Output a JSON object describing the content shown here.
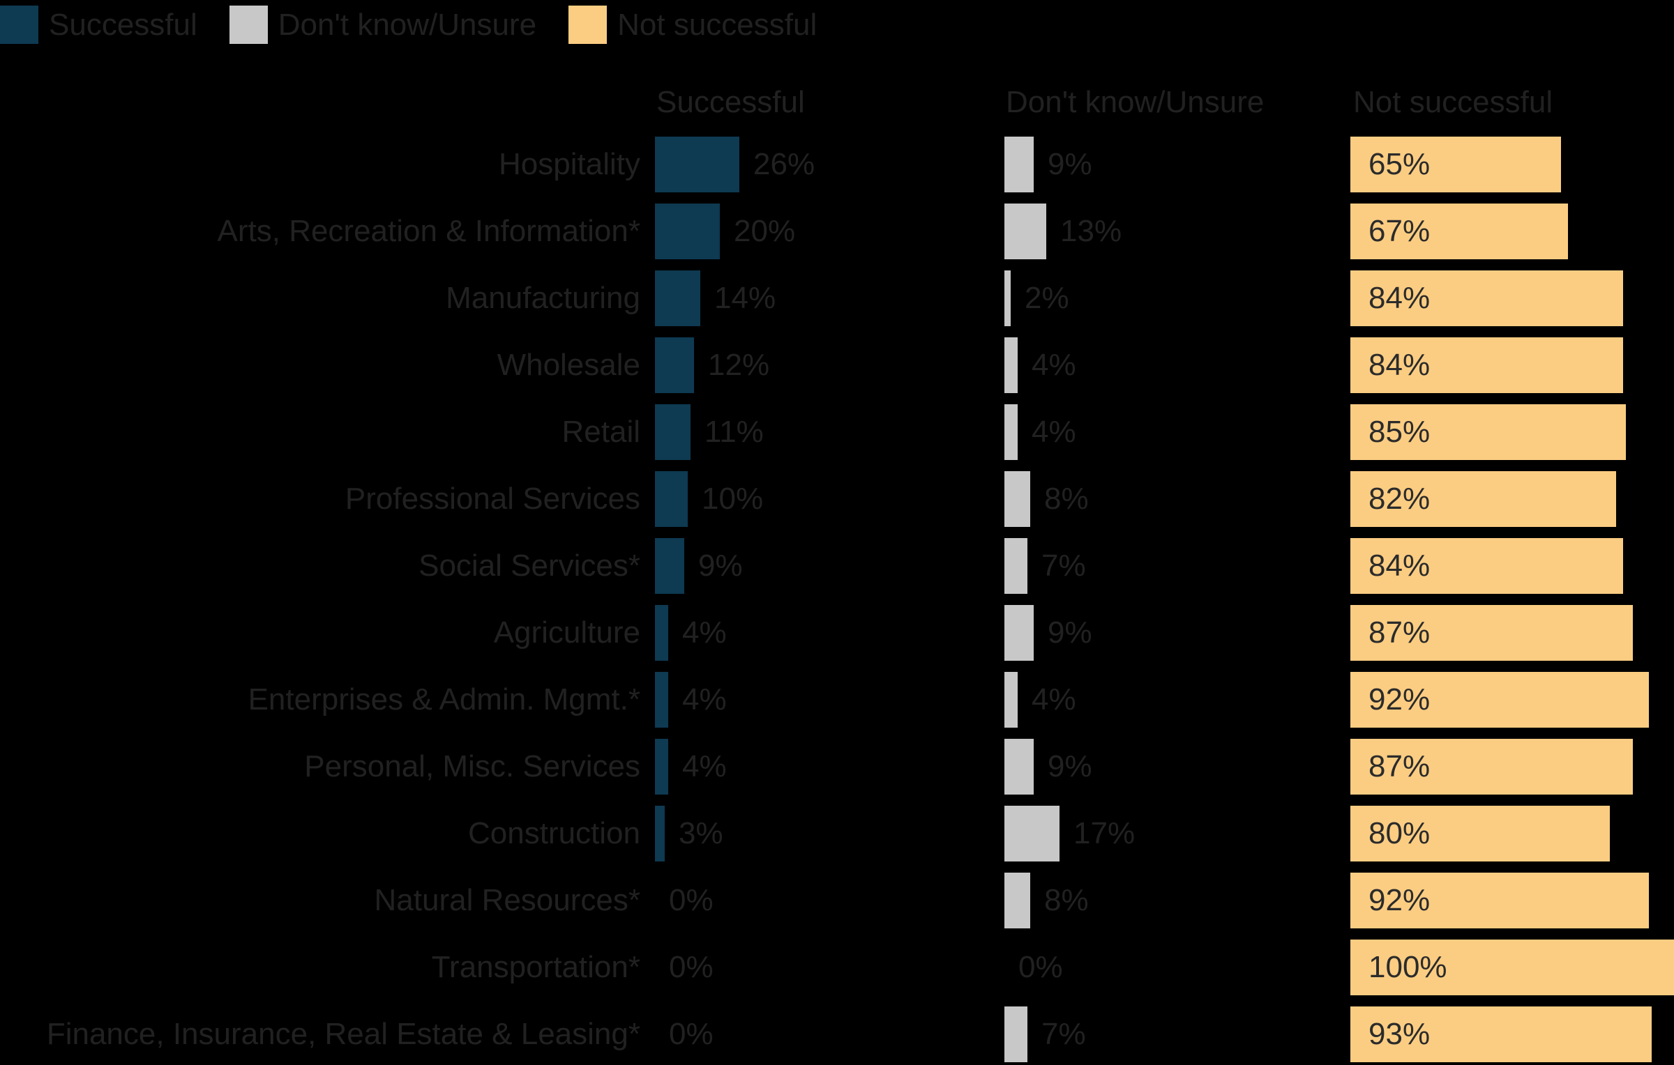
{
  "legend": {
    "items": [
      {
        "label": "Successful",
        "color": "#0e3a52"
      },
      {
        "label": "Don't know/Unsure",
        "color": "#c8c8c8"
      },
      {
        "label": "Not successful",
        "color": "#fbcd82"
      }
    ]
  },
  "column_headers": {
    "successful": "Successful",
    "dont_know": "Don't know/Unsure",
    "not_successful": "Not successful"
  },
  "colors": {
    "background": "#000000",
    "text": "#212121",
    "successful_bar": "#0e3a52",
    "dont_know_bar": "#c8c8c8",
    "not_successful_bar": "#fbcd82"
  },
  "chart_data": {
    "type": "bar",
    "orientation": "horizontal",
    "title": "",
    "xlabel": "",
    "ylabel": "",
    "xlim": [
      0,
      100
    ],
    "grid": false,
    "legend_position": "top",
    "value_format": "percent",
    "categories": [
      "Hospitality",
      "Arts, Recreation & Information*",
      "Manufacturing",
      "Wholesale",
      "Retail",
      "Professional Services",
      "Social Services*",
      "Agriculture",
      "Enterprises & Admin. Mgmt.*",
      "Personal, Misc. Services",
      "Construction",
      "Natural Resources*",
      "Transportation*",
      "Finance, Insurance, Real Estate & Leasing*"
    ],
    "series": [
      {
        "name": "Successful",
        "color": "#0e3a52",
        "values": [
          26,
          20,
          14,
          12,
          11,
          10,
          9,
          4,
          4,
          4,
          3,
          0,
          0,
          0
        ],
        "labels": [
          "26%",
          "20%",
          "14%",
          "12%",
          "11%",
          "10%",
          "9%",
          "4%",
          "4%",
          "4%",
          "3%",
          "0%",
          "0%",
          "0%"
        ]
      },
      {
        "name": "Don't know/Unsure",
        "color": "#c8c8c8",
        "values": [
          9,
          13,
          2,
          4,
          4,
          8,
          7,
          9,
          4,
          9,
          17,
          8,
          0,
          7
        ],
        "labels": [
          "9%",
          "13%",
          "2%",
          "4%",
          "4%",
          "8%",
          "7%",
          "9%",
          "4%",
          "9%",
          "17%",
          "8%",
          "0%",
          "7%"
        ]
      },
      {
        "name": "Not successful",
        "color": "#fbcd82",
        "values": [
          65,
          67,
          84,
          84,
          85,
          82,
          84,
          87,
          92,
          87,
          80,
          92,
          100,
          93
        ],
        "labels": [
          "65%",
          "67%",
          "84%",
          "84%",
          "85%",
          "82%",
          "84%",
          "87%",
          "92%",
          "87%",
          "80%",
          "92%",
          "100%",
          "93%"
        ]
      }
    ]
  }
}
